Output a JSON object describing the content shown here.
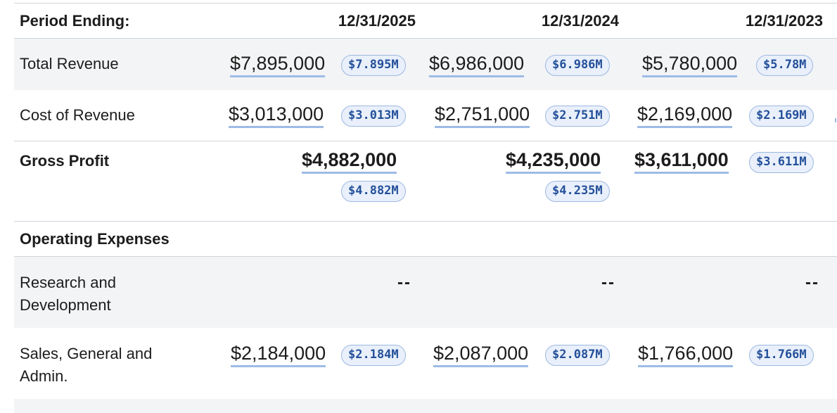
{
  "header": {
    "label": "Period Ending:",
    "periods": [
      "12/31/2025",
      "12/31/2024",
      "12/31/2023"
    ]
  },
  "rows": [
    {
      "label": "Total Revenue",
      "values": [
        "$7,895,000",
        "$6,986,000",
        "$5,780,000"
      ],
      "badges": [
        "$7.895M",
        "$6.986M",
        "$5.78M"
      ]
    },
    {
      "label": "Cost of Revenue",
      "values": [
        "$3,013,000",
        "$2,751,000",
        "$2,169,000"
      ],
      "badges": [
        "$3.013M",
        "$2.751M",
        "$2.169M"
      ]
    },
    {
      "label": "Gross Profit",
      "values": [
        "$4,882,000",
        "$4,235,000",
        "$3,611,000"
      ],
      "badges": [
        "$4.882M",
        "$4.235M",
        "$3.611M"
      ]
    },
    {
      "label": "Operating Expenses"
    },
    {
      "label_line1": "Research and",
      "label_line2": "Development",
      "values": [
        "--",
        "--",
        "--"
      ]
    },
    {
      "label_line1": "Sales, General and",
      "label_line2": "Admin.",
      "values": [
        "$2,184,000",
        "$2,087,000",
        "$1,766,000"
      ],
      "badges": [
        "$2.184M",
        "$2.087M",
        "$1.766M"
      ]
    }
  ]
}
